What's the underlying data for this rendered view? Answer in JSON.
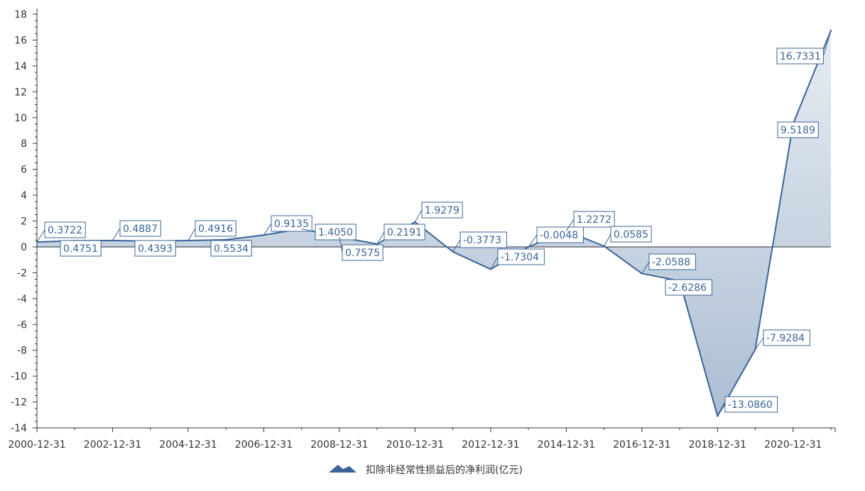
{
  "chart_data": {
    "type": "area",
    "title": "",
    "xlabel": "",
    "ylabel": "",
    "x": [
      "2000-12-31",
      "2001-12-31",
      "2002-12-31",
      "2003-12-31",
      "2004-12-31",
      "2005-12-31",
      "2006-12-31",
      "2007-12-31",
      "2008-12-31",
      "2009-12-31",
      "2010-12-31",
      "2011-12-31",
      "2012-12-31",
      "2013-12-31",
      "2014-12-31",
      "2015-12-31",
      "2016-12-31",
      "2017-12-31",
      "2018-12-31",
      "2019-12-31",
      "2020-12-31",
      "2021-12-31"
    ],
    "x_tick_labels": [
      "2000-12-31",
      "2002-12-31",
      "2004-12-31",
      "2006-12-31",
      "2008-12-31",
      "2010-12-31",
      "2012-12-31",
      "2014-12-31",
      "2016-12-31",
      "2018-12-31",
      "2020-12-31"
    ],
    "series": [
      {
        "name": "扣除非经常性损益后的净利润(亿元)",
        "values": [
          0.3722,
          0.4751,
          0.4887,
          0.4393,
          0.4916,
          0.5534,
          0.9135,
          1.405,
          0.7575,
          0.2191,
          1.9279,
          -0.3773,
          -1.7304,
          -0.0048,
          1.2272,
          0.0585,
          -2.0588,
          -2.6286,
          -13.086,
          -7.9284,
          9.5189,
          16.7331
        ]
      }
    ],
    "data_labels": [
      "0.3722",
      "0.4751",
      "0.4887",
      "0.4393",
      "0.4916",
      "0.5534",
      "0.9135",
      "1.4050",
      "0.7575",
      "0.2191",
      "1.9279",
      "-0.3773",
      "-1.7304",
      "-0.0048",
      "1.2272",
      "0.0585",
      "-2.0588",
      "-2.6286",
      "-13.0860",
      "-7.9284",
      "9.5189",
      "16.7331"
    ],
    "ylim": [
      -14,
      18
    ],
    "y_ticks": [
      -14,
      -12,
      -10,
      -8,
      -6,
      -4,
      -2,
      0,
      2,
      4,
      6,
      8,
      10,
      12,
      14,
      16,
      18
    ],
    "grid": false,
    "legend": "bottom-center",
    "colors": {
      "line": "#3a6497",
      "text": "#333333"
    }
  }
}
